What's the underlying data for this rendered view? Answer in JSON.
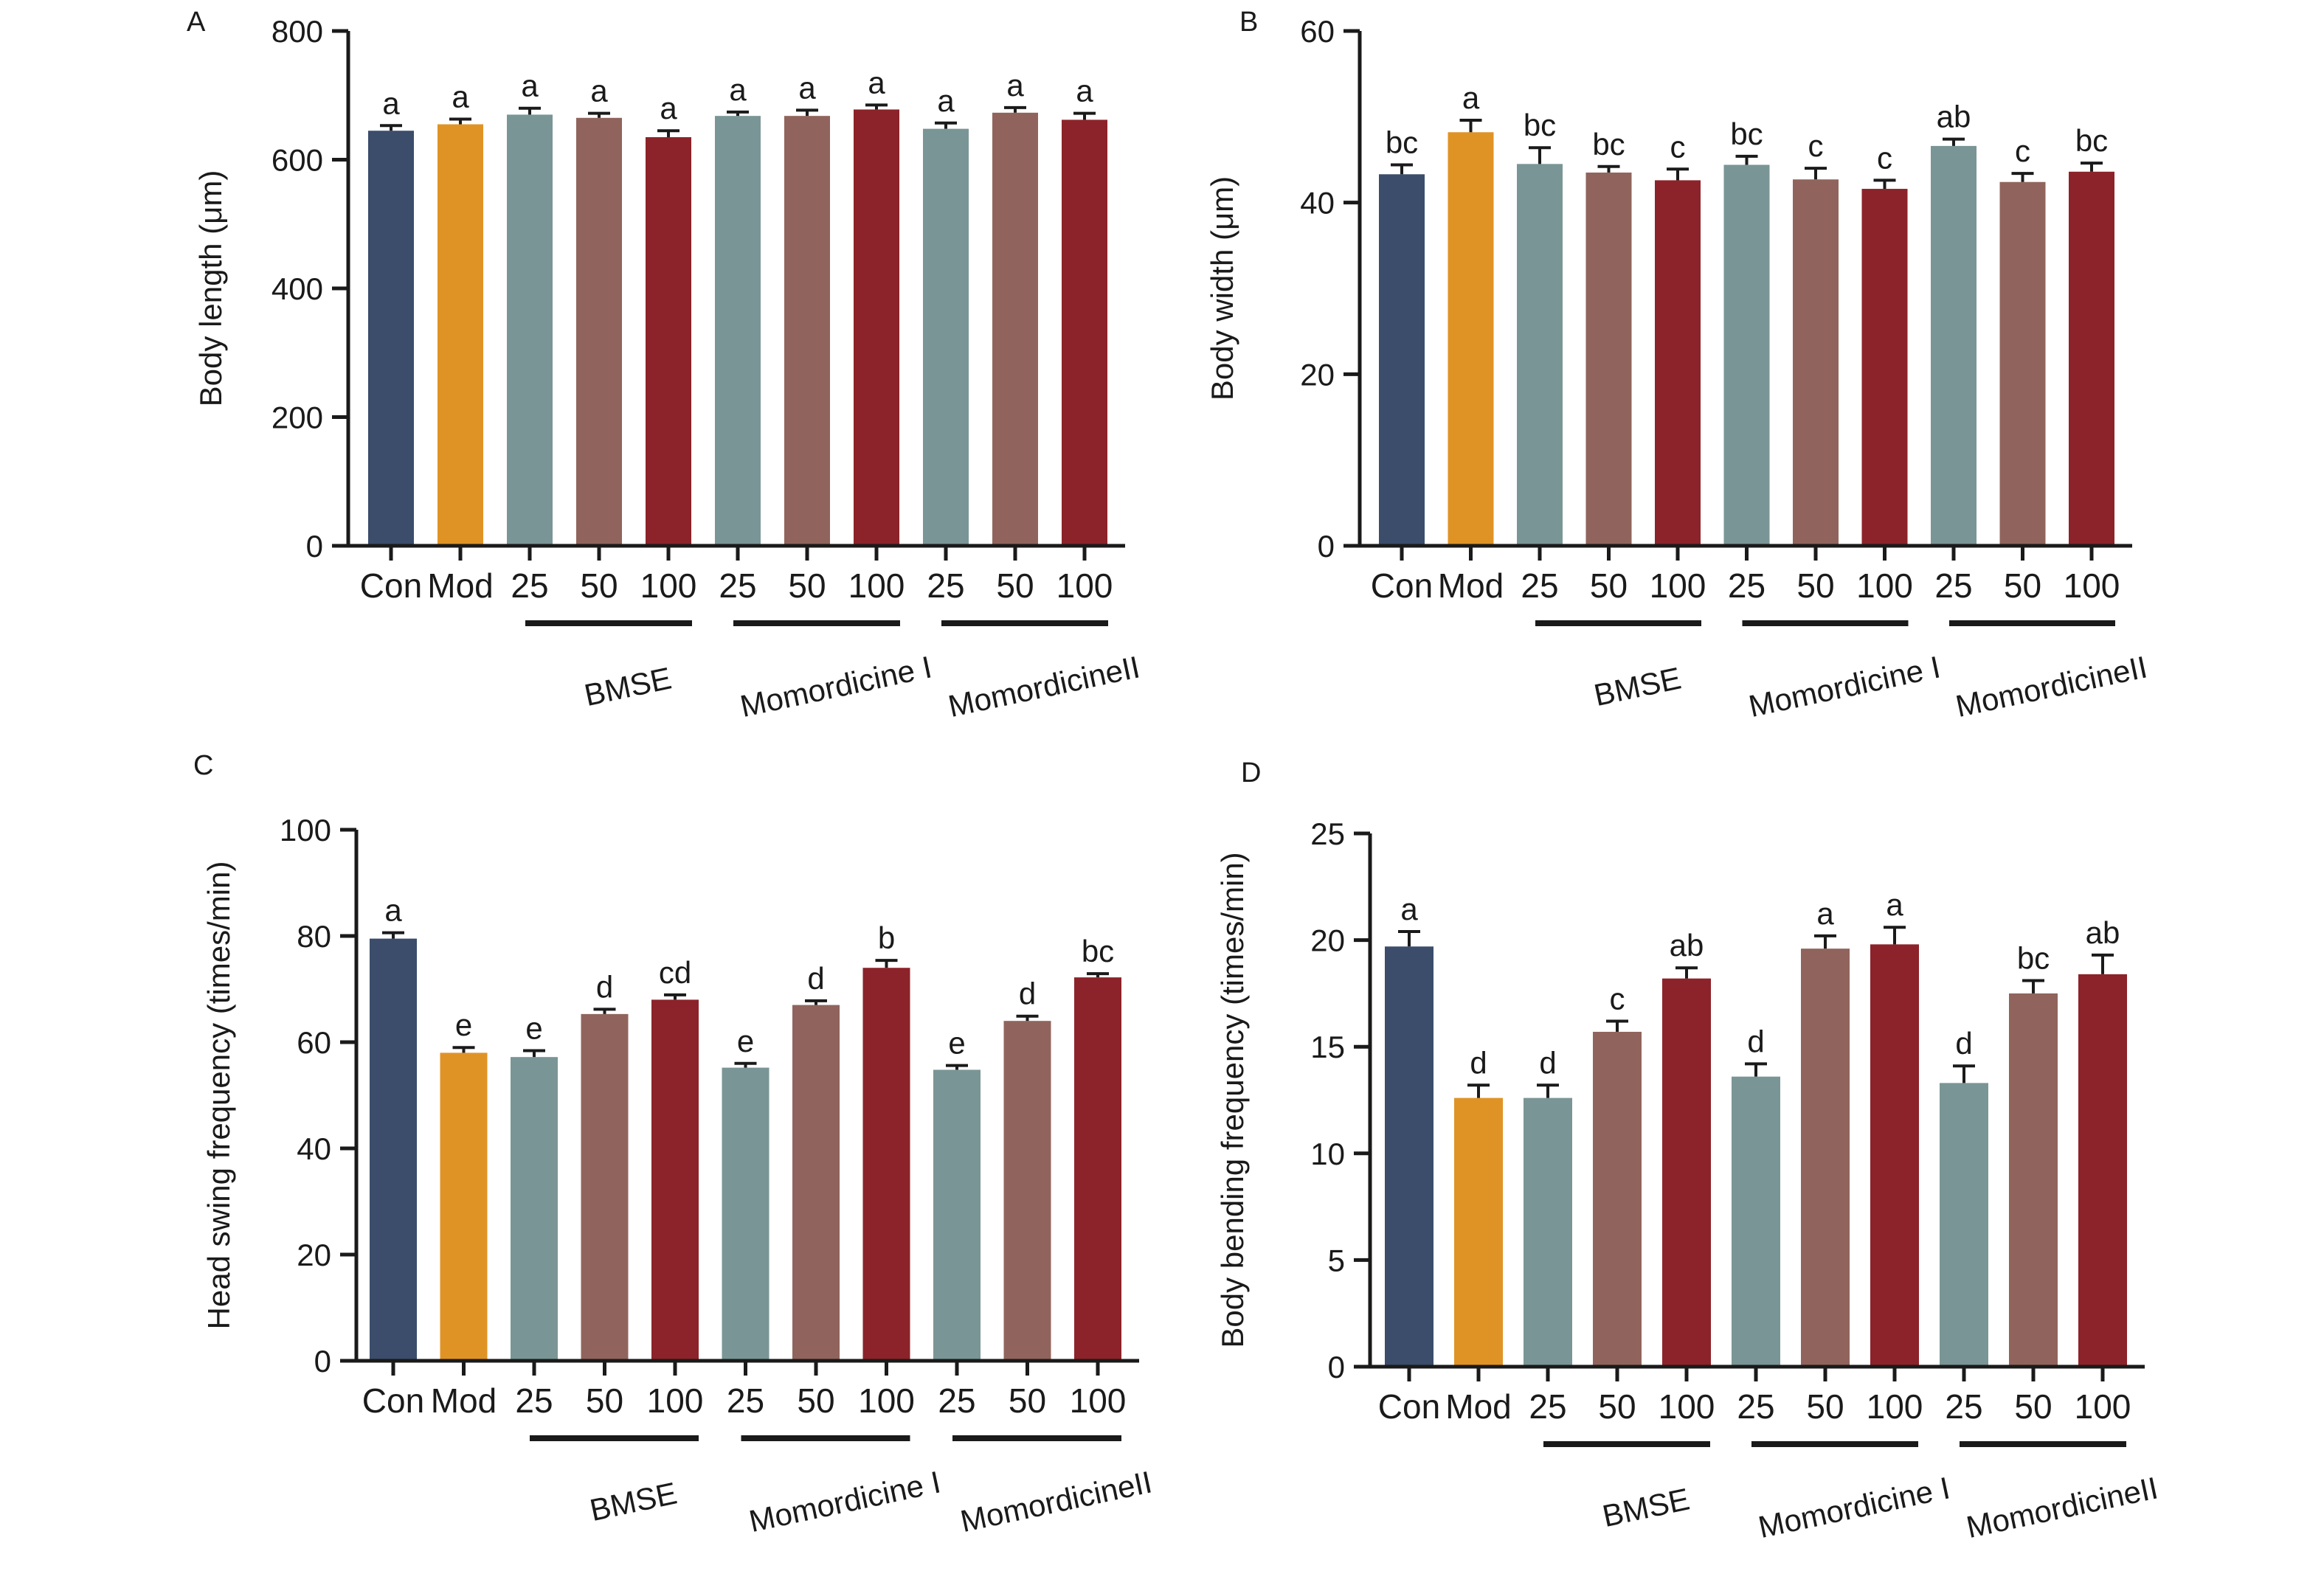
{
  "colors": {
    "con": "#3b4d6b",
    "mod": "#e09325",
    "low": "#7a9595",
    "mid": "#90645c",
    "high": "#8c232a",
    "axis": "#1a1a1a"
  },
  "categories": [
    "Con",
    "Mod",
    "25",
    "50",
    "100",
    "25",
    "50",
    "100",
    "25",
    "50",
    "100"
  ],
  "color_keys": [
    "con",
    "mod",
    "low",
    "mid",
    "high",
    "low",
    "mid",
    "high",
    "low",
    "mid",
    "high"
  ],
  "groups": [
    "BMSE",
    "Momordicine I",
    "MomordicineII"
  ],
  "chart_data": [
    {
      "panel": "A",
      "type": "bar",
      "title": "",
      "ylabel": "Body length (μm)",
      "ylim": [
        0,
        800
      ],
      "yticks": [
        0,
        200,
        400,
        600,
        800
      ],
      "values": [
        645,
        655,
        670,
        665,
        635,
        668,
        668,
        678,
        648,
        673,
        662
      ],
      "errors": [
        8,
        8,
        10,
        7,
        10,
        6,
        9,
        7,
        9,
        8,
        10
      ],
      "letters": [
        "a",
        "a",
        "a",
        "a",
        "a",
        "a",
        "a",
        "a",
        "a",
        "a",
        "a"
      ]
    },
    {
      "panel": "B",
      "type": "bar",
      "title": "",
      "ylabel": "Body width (μm)",
      "ylim": [
        0,
        60
      ],
      "yticks": [
        0,
        20,
        40,
        60
      ],
      "values": [
        43.3,
        48.2,
        44.5,
        43.5,
        42.6,
        44.4,
        42.7,
        41.6,
        46.6,
        42.4,
        43.6
      ],
      "errors": [
        1.1,
        1.4,
        1.9,
        0.7,
        1.3,
        1.0,
        1.3,
        1.0,
        0.8,
        1.0,
        1.0
      ],
      "letters": [
        "bc",
        "a",
        "bc",
        "bc",
        "c",
        "bc",
        "c",
        "c",
        "ab",
        "c",
        "bc"
      ]
    },
    {
      "panel": "C",
      "type": "bar",
      "title": "",
      "ylabel": "Head swing frequency (times/min)",
      "ylim": [
        0,
        100
      ],
      "yticks": [
        0,
        20,
        40,
        60,
        80,
        100
      ],
      "values": [
        79.5,
        58,
        57.2,
        65.3,
        68,
        55.2,
        67,
        74,
        54.8,
        64,
        72.2
      ],
      "errors": [
        1.1,
        1.0,
        1.2,
        0.9,
        0.9,
        0.8,
        0.8,
        1.4,
        0.8,
        0.9,
        0.7
      ],
      "letters": [
        "a",
        "e",
        "e",
        "d",
        "cd",
        "e",
        "d",
        "b",
        "e",
        "d",
        "bc"
      ]
    },
    {
      "panel": "D",
      "type": "bar",
      "title": "",
      "ylabel": "Body bending frequency (times/min)",
      "ylim": [
        0,
        25
      ],
      "yticks": [
        0,
        5,
        10,
        15,
        20,
        25
      ],
      "values": [
        19.7,
        12.6,
        12.6,
        15.7,
        18.2,
        13.6,
        19.6,
        19.8,
        13.3,
        17.5,
        18.4
      ],
      "errors": [
        0.7,
        0.6,
        0.6,
        0.5,
        0.5,
        0.6,
        0.6,
        0.8,
        0.8,
        0.6,
        0.9
      ],
      "letters": [
        "a",
        "d",
        "d",
        "c",
        "ab",
        "d",
        "a",
        "a",
        "d",
        "bc",
        "ab"
      ]
    }
  ]
}
